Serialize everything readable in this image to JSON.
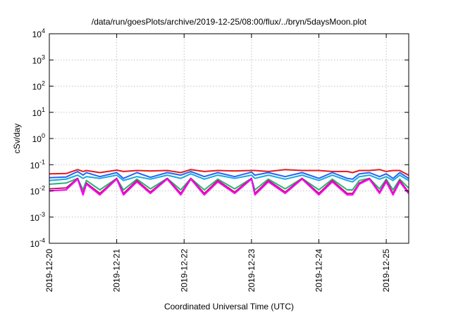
{
  "chart_data": {
    "type": "line",
    "title": "/data/run/goesPlots/archive/2019-12-25/08:00/flux/../bryn/5daysMoon.plot",
    "xlabel": "Coordinated Universal Time (UTC)",
    "ylabel": "cSv/day",
    "yscale": "log",
    "ylim": [
      0.0001,
      10000
    ],
    "xlim": [
      "2019-12-20",
      "2019-12-25 08:00"
    ],
    "grid": true,
    "legend": "none",
    "y_ticks": [
      {
        "base": "10",
        "exp": "-4"
      },
      {
        "base": "10",
        "exp": "-3"
      },
      {
        "base": "10",
        "exp": "-2"
      },
      {
        "base": "10",
        "exp": "-1"
      },
      {
        "base": "10",
        "exp": "0"
      },
      {
        "base": "10",
        "exp": "1"
      },
      {
        "base": "10",
        "exp": "2"
      },
      {
        "base": "10",
        "exp": "3"
      },
      {
        "base": "10",
        "exp": "4"
      }
    ],
    "x_ticks": [
      "2019-12-20",
      "2019-12-21",
      "2019-12-22",
      "2019-12-23",
      "2019-12-24",
      "2019-12-25"
    ],
    "x_days": [
      0,
      0.25,
      0.42,
      0.5,
      0.55,
      0.75,
      1.0,
      1.1,
      1.3,
      1.5,
      1.75,
      1.95,
      2.1,
      2.3,
      2.5,
      2.75,
      3.0,
      3.05,
      3.25,
      3.5,
      3.75,
      4.0,
      4.2,
      4.42,
      4.5,
      4.6,
      4.75,
      4.9,
      5.0,
      5.1,
      5.2,
      5.33
    ],
    "series": [
      {
        "color": "#e4191c",
        "values": [
          0.045,
          0.046,
          0.065,
          0.055,
          0.06,
          0.05,
          0.062,
          0.055,
          0.06,
          0.058,
          0.06,
          0.05,
          0.065,
          0.055,
          0.06,
          0.058,
          0.06,
          0.06,
          0.055,
          0.065,
          0.06,
          0.06,
          0.055,
          0.055,
          0.05,
          0.06,
          0.06,
          0.065,
          0.055,
          0.06,
          0.06,
          0.04
        ]
      },
      {
        "color": "#2166f5",
        "values": [
          0.032,
          0.034,
          0.055,
          0.04,
          0.05,
          0.035,
          0.05,
          0.03,
          0.05,
          0.033,
          0.05,
          0.04,
          0.055,
          0.035,
          0.05,
          0.035,
          0.052,
          0.04,
          0.05,
          0.035,
          0.05,
          0.03,
          0.05,
          0.03,
          0.028,
          0.045,
          0.05,
          0.035,
          0.045,
          0.03,
          0.05,
          0.03
        ]
      },
      {
        "color": "#18a8e0",
        "values": [
          0.025,
          0.028,
          0.04,
          0.03,
          0.035,
          0.03,
          0.04,
          0.025,
          0.035,
          0.028,
          0.04,
          0.03,
          0.045,
          0.028,
          0.04,
          0.03,
          0.04,
          0.03,
          0.04,
          0.028,
          0.04,
          0.025,
          0.04,
          0.025,
          0.022,
          0.035,
          0.04,
          0.028,
          0.035,
          0.025,
          0.04,
          0.025
        ]
      },
      {
        "color": "#2ab27a",
        "values": [
          0.018,
          0.02,
          0.03,
          0.011,
          0.025,
          0.011,
          0.03,
          0.011,
          0.028,
          0.012,
          0.03,
          0.011,
          0.03,
          0.011,
          0.028,
          0.012,
          0.03,
          0.011,
          0.028,
          0.012,
          0.03,
          0.011,
          0.028,
          0.011,
          0.011,
          0.025,
          0.03,
          0.012,
          0.028,
          0.011,
          0.028,
          0.013
        ]
      },
      {
        "color": "#c2186b",
        "values": [
          0.012,
          0.013,
          0.03,
          0.008,
          0.02,
          0.008,
          0.03,
          0.008,
          0.025,
          0.009,
          0.03,
          0.008,
          0.03,
          0.008,
          0.025,
          0.009,
          0.03,
          0.008,
          0.025,
          0.009,
          0.03,
          0.008,
          0.025,
          0.008,
          0.008,
          0.02,
          0.03,
          0.009,
          0.025,
          0.008,
          0.025,
          0.009
        ]
      },
      {
        "color": "#ff00ff",
        "values": [
          0.01,
          0.011,
          0.028,
          0.007,
          0.018,
          0.007,
          0.028,
          0.007,
          0.022,
          0.008,
          0.028,
          0.007,
          0.028,
          0.007,
          0.022,
          0.008,
          0.028,
          0.007,
          0.022,
          0.008,
          0.028,
          0.007,
          0.022,
          0.007,
          0.007,
          0.018,
          0.028,
          0.008,
          0.022,
          0.007,
          0.022,
          0.008
        ]
      }
    ]
  }
}
